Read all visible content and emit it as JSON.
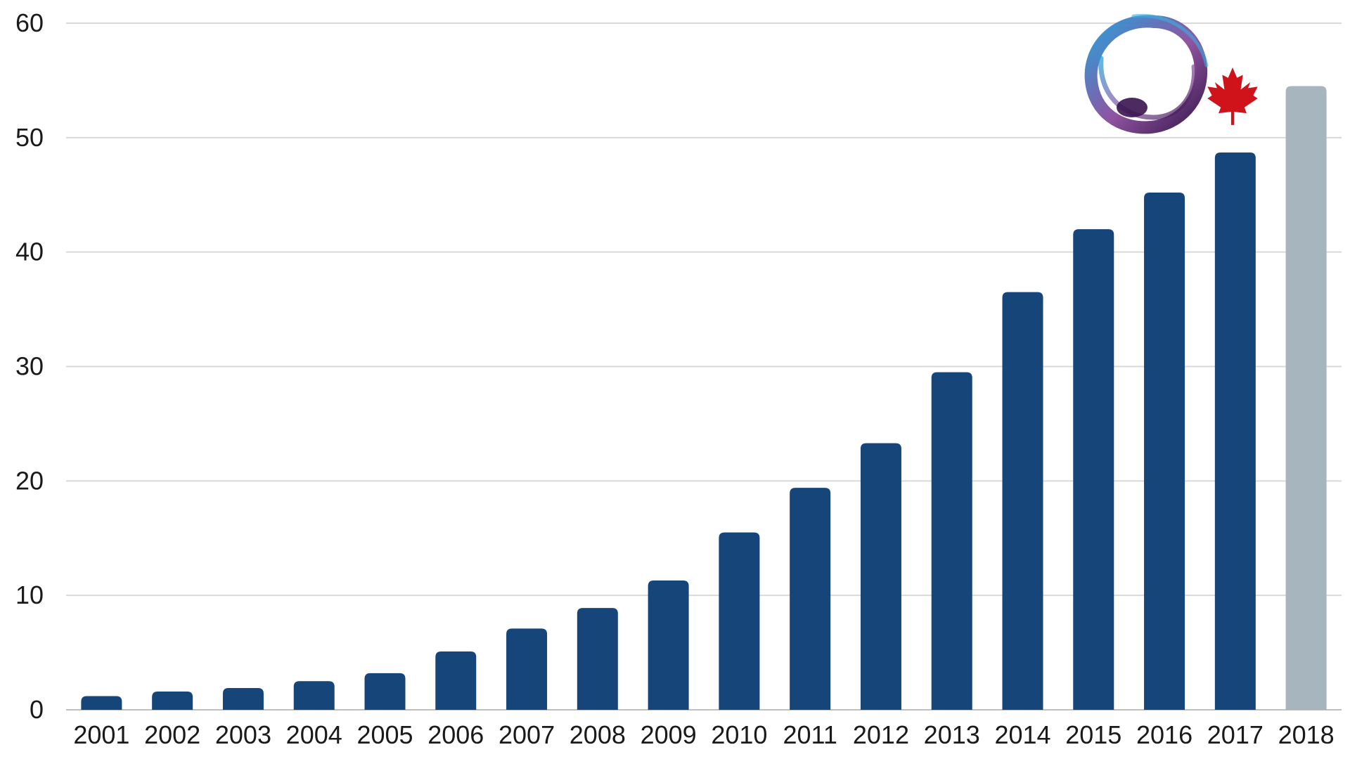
{
  "chart_data": {
    "type": "bar",
    "title": "",
    "xlabel": "",
    "ylabel": "",
    "categories": [
      "2001",
      "2002",
      "2003",
      "2004",
      "2005",
      "2006",
      "2007",
      "2008",
      "2009",
      "2010",
      "2011",
      "2012",
      "2013",
      "2014",
      "2015",
      "2016",
      "2017",
      "2018"
    ],
    "values": [
      1.2,
      1.6,
      1.9,
      2.5,
      3.2,
      5.1,
      7.1,
      8.9,
      11.3,
      15.5,
      19.4,
      23.3,
      29.5,
      36.5,
      42.0,
      45.2,
      48.7,
      54.5
    ],
    "ylim": [
      0,
      60
    ],
    "yticks": [
      0,
      10,
      20,
      30,
      40,
      50,
      60
    ],
    "grid": true,
    "legend": "none",
    "highlight_index": 17,
    "colors": {
      "bar": "#16457a",
      "highlight_bar": "#a7b5bf",
      "gridline": "#d9d9d9",
      "text": "#1a1a1a"
    }
  },
  "decorations": {
    "logo_icon": "enso-brush-circle-icon",
    "flag_icon": "maple-leaf-icon",
    "logo_gradient": [
      "#1f9bd8",
      "#7a3a8c",
      "#3a1450"
    ],
    "leaf_color": "#d0121b"
  }
}
